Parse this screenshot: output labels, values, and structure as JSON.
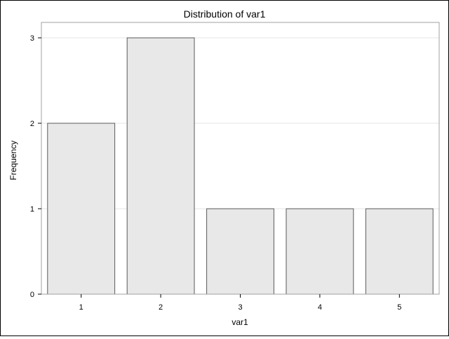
{
  "chart_data": {
    "type": "bar",
    "title": "Distribution of var1",
    "xlabel": "var1",
    "ylabel": "Frequency",
    "categories": [
      "1",
      "2",
      "3",
      "4",
      "5"
    ],
    "values": [
      2,
      3,
      1,
      1,
      1
    ],
    "ylim": [
      0,
      3
    ],
    "yticks": [
      "0",
      "1",
      "2",
      "3"
    ],
    "grid": true,
    "legend": "none",
    "colors": {
      "bar_fill": "#e8e8e8",
      "bar_stroke": "#5a5a5a",
      "grid": "#e6e6e6",
      "frame": "#a0a0a0",
      "text": "#000000"
    }
  }
}
